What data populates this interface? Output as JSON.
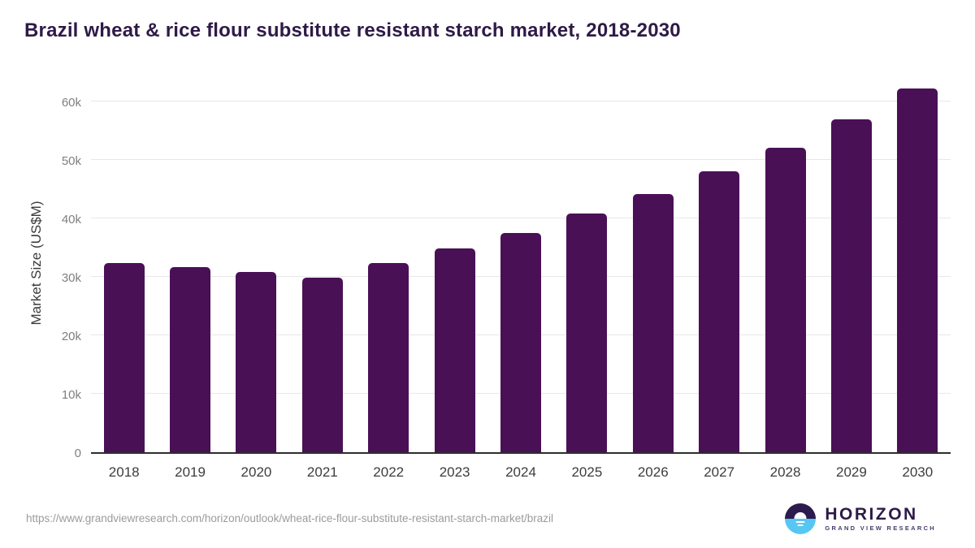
{
  "title": "Brazil wheat & rice flour substitute resistant starch market, 2018-2030",
  "chart_data": {
    "type": "bar",
    "title": "Brazil wheat & rice flour substitute resistant starch market, 2018-2030",
    "categories": [
      "2018",
      "2019",
      "2020",
      "2021",
      "2022",
      "2023",
      "2024",
      "2025",
      "2026",
      "2027",
      "2028",
      "2029",
      "2030"
    ],
    "values": [
      32400,
      31600,
      30800,
      29900,
      32300,
      34800,
      37500,
      40800,
      44100,
      48000,
      52100,
      56900,
      62200
    ],
    "xlabel": "",
    "ylabel": "Market Size (US$M)",
    "ylim": [
      0,
      65000
    ],
    "yticks": [
      0,
      10000,
      20000,
      30000,
      40000,
      50000,
      60000
    ],
    "ytick_labels": [
      "0",
      "10k",
      "20k",
      "30k",
      "40k",
      "50k",
      "60k"
    ],
    "grid": true,
    "legend": "none",
    "bar_color": "#4a1056"
  },
  "footer": {
    "source_url": "https://www.grandviewresearch.com/horizon/outlook/wheat-rice-flour-substitute-resistant-starch-market/brazil",
    "logo": {
      "name": "HORIZON",
      "subtitle": "GRAND VIEW RESEARCH"
    }
  },
  "colors": {
    "title": "#2e1a47",
    "bar": "#4a1056",
    "gridline": "#e7e7e7",
    "axis_line": "#2d2d2d",
    "ytick_label": "#7f7f7f",
    "xtick_label": "#3c3c3c",
    "url_text": "#9b9b9b",
    "logo_dark": "#2d1b4e",
    "logo_blue": "#56c7f2"
  }
}
